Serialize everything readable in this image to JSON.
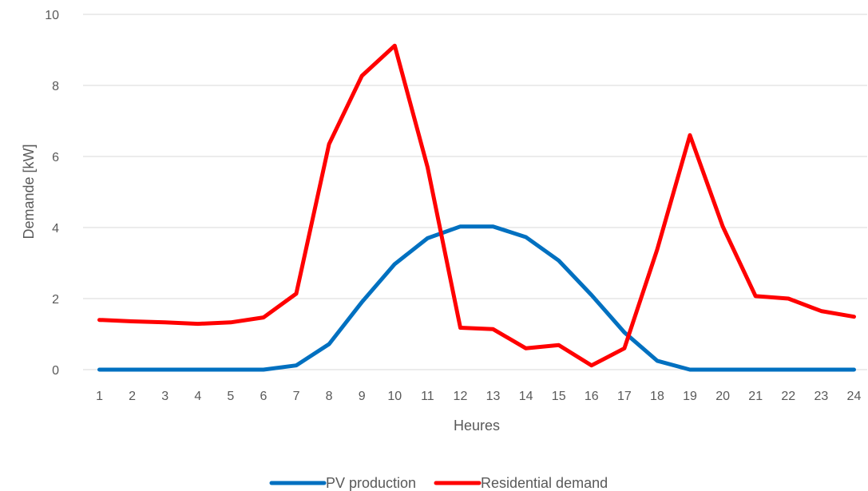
{
  "chart_data": {
    "type": "line",
    "title": "",
    "xlabel": "Heures",
    "ylabel": "Demande [kW]",
    "ylim": [
      0,
      10
    ],
    "yticks": [
      0,
      2,
      4,
      6,
      8,
      10
    ],
    "grid": true,
    "legend_position": "bottom",
    "categories": [
      "1",
      "2",
      "3",
      "4",
      "5",
      "6",
      "7",
      "8",
      "9",
      "10",
      "11",
      "12",
      "13",
      "14",
      "15",
      "16",
      "17",
      "18",
      "19",
      "20",
      "21",
      "22",
      "23",
      "24"
    ],
    "series": [
      {
        "name": "PV production",
        "color": "#0070c0",
        "values": [
          0,
          0,
          0,
          0,
          0,
          0,
          0.12,
          0.72,
          1.9,
          2.97,
          3.7,
          4.03,
          4.03,
          3.73,
          3.07,
          2.1,
          1.05,
          0.25,
          0,
          0,
          0,
          0,
          0,
          0
        ]
      },
      {
        "name": "Residential demand",
        "color": "#ff0000",
        "values": [
          1.4,
          1.36,
          1.33,
          1.29,
          1.33,
          1.47,
          2.14,
          6.35,
          8.27,
          9.12,
          5.7,
          1.18,
          1.14,
          0.6,
          0.69,
          0.12,
          0.6,
          3.38,
          6.6,
          4.03,
          2.07,
          2.0,
          1.65,
          1.49
        ]
      }
    ]
  }
}
